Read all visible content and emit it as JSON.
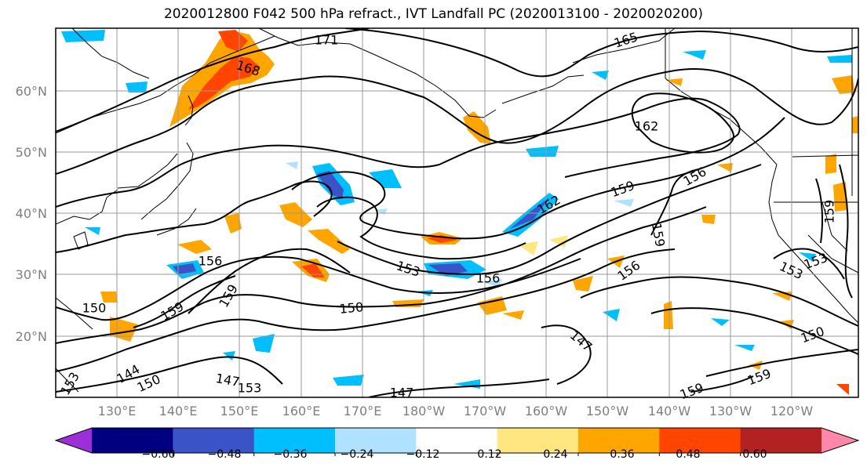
{
  "title": "2020012800 F042 500 hPa refract., IVT Landfall PC (2020013100 - 2020020200)",
  "latitude_labels": [
    "60°N",
    "50°N",
    "40°N",
    "30°N",
    "20°N"
  ],
  "longitude_labels": [
    "130°E",
    "140°E",
    "150°E",
    "160°E",
    "170°E",
    "180°W",
    "170°W",
    "160°W",
    "150°W",
    "140°W",
    "130°W",
    "120°W"
  ],
  "contour_labels": [
    "171",
    "165",
    "168",
    "162",
    "156",
    "159",
    "162",
    "159",
    "156",
    "153",
    "156",
    "156",
    "159",
    "153",
    "150",
    "150",
    "159",
    "159",
    "153",
    "150",
    "147",
    "144",
    "150",
    "147",
    "153",
    "147",
    "159",
    "153",
    "159"
  ],
  "colorbar": {
    "ticks": [
      "−0.60",
      "−0.48",
      "−0.36",
      "−0.24",
      "−0.12",
      "0.12",
      "0.24",
      "0.36",
      "0.48",
      "0.60"
    ],
    "colors": [
      "#9b30d9",
      "#000080",
      "#3a54c8",
      "#00bfff",
      "#b0e2ff",
      "#ffffff",
      "#ffe680",
      "#ffa500",
      "#ff4500",
      "#b22222",
      "#ff88aa"
    ]
  }
}
